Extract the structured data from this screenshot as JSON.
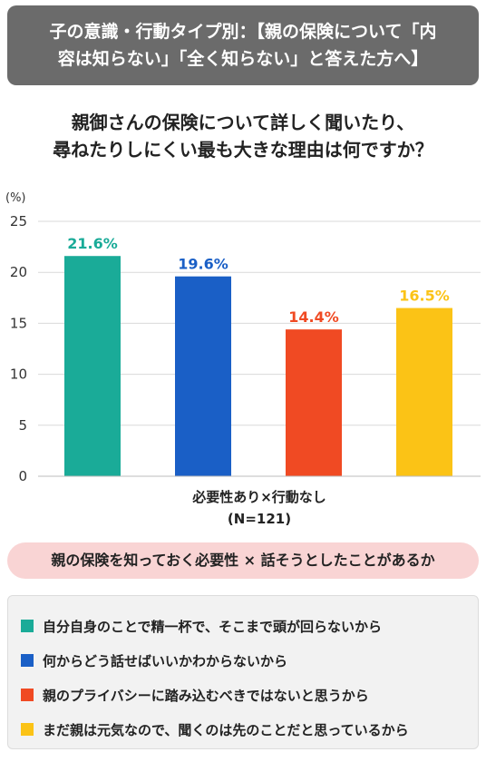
{
  "header": {
    "line1": "子の意識・行動タイプ別：【親の保険について「内",
    "line2": "容は知らない」「全く知らない」と答えた方へ】"
  },
  "question": {
    "line1": "親御さんの保険について詳しく聞いたり、",
    "line2": "尋ねたりしにくい最も大きな理由は何ですか？"
  },
  "chart_data": {
    "type": "bar",
    "unit_label": "(%)",
    "ylim": [
      0,
      25
    ],
    "yticks": [
      0,
      5,
      10,
      15,
      20,
      25
    ],
    "grid": true,
    "group_label": "必要性あり×行動なし",
    "group_sublabel": "(N=121)",
    "series": [
      {
        "name": "自分自身のことで精一杯で、そこまで頭が回らないから",
        "value": 21.6,
        "value_label": "21.6%",
        "color": "#1aab98"
      },
      {
        "name": "何からどう話せばいいかわからないから",
        "value": 19.6,
        "value_label": "19.6%",
        "color": "#1a5fc6"
      },
      {
        "name": "親のプライバシーに踏み込むべきではないと思うから",
        "value": 14.4,
        "value_label": "14.4%",
        "color": "#f04a23"
      },
      {
        "name": "まだ親は元気なので、聞くのは先のことだと思っているから",
        "value": 16.5,
        "value_label": "16.5%",
        "color": "#fbc316"
      }
    ]
  },
  "pill": {
    "text": "親の保険を知っておく必要性 × 話そうとしたことがあるか"
  }
}
